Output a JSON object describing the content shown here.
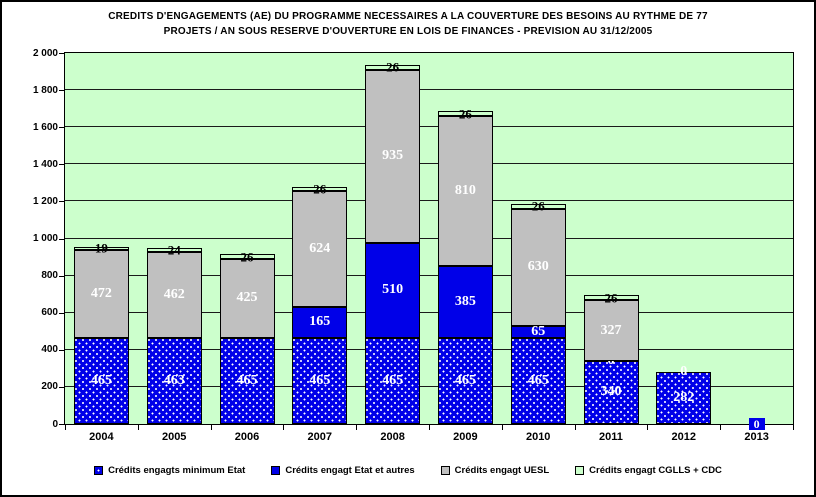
{
  "title": {
    "line1": "CREDITS D'ENGAGEMENTS (AE) DU PROGRAMME NECESSAIRES A LA COUVERTURE DES BESOINS AU RYTHME DE 77",
    "line2": "PROJETS / AN SOUS RESERVE D'OUVERTURE EN LOIS DE FINANCES - PREVISION AU 31/12/2005"
  },
  "colors": {
    "plot_background": "#CCFFCC",
    "blue": "#0000E8",
    "gray": "#C0C0C0",
    "light_green": "#CCFFCC",
    "grid": "#1a1a1a",
    "text": "#000000",
    "data_label_light": "#FFFFFF"
  },
  "chart_data": {
    "type": "bar",
    "stacked": true,
    "title": "CREDITS D'ENGAGEMENTS (AE) DU PROGRAMME NECESSAIRES A LA COUVERTURE DES BESOINS AU RYTHME DE 77 PROJETS / AN SOUS RESERVE D'OUVERTURE EN LOIS DE FINANCES - PREVISION AU 31/12/2005",
    "categories": [
      "2004",
      "2005",
      "2006",
      "2007",
      "2008",
      "2009",
      "2010",
      "2011",
      "2012",
      "2013"
    ],
    "y_axis": {
      "min": 0,
      "max": 2000,
      "step": 200,
      "tick_labels": [
        "0",
        "200",
        "400",
        "600",
        "800",
        "1 000",
        "1 200",
        "1 400",
        "1 600",
        "1 800",
        "2 000"
      ]
    },
    "grid": true,
    "legend_position": "bottom",
    "series": [
      {
        "name": "Crédits engagts minimum Etat",
        "style": "blue-dotted",
        "values": [
          465,
          463,
          465,
          465,
          465,
          465,
          465,
          340,
          282,
          0
        ],
        "labels": [
          "465",
          "463",
          "465",
          "465",
          "465",
          "465",
          "465",
          "340",
          "282",
          "0"
        ]
      },
      {
        "name": "Crédits engagt Etat et autres",
        "style": "blue-solid",
        "values": [
          0,
          0,
          0,
          165,
          510,
          385,
          65,
          0,
          0,
          0
        ],
        "labels": [
          null,
          null,
          null,
          "165",
          "510",
          "385",
          "65",
          "0",
          "0",
          null
        ]
      },
      {
        "name": "Crédits engagt UESL",
        "style": "gray",
        "values": [
          472,
          462,
          425,
          624,
          935,
          810,
          630,
          327,
          0,
          0
        ],
        "labels": [
          "472",
          "462",
          "425",
          "624",
          "935",
          "810",
          "630",
          "327",
          null,
          null
        ]
      },
      {
        "name": "Crédits engagt CGLLS + CDC",
        "style": "green",
        "values": [
          19,
          24,
          26,
          26,
          26,
          26,
          26,
          26,
          0,
          0
        ],
        "labels": [
          "19",
          "24",
          "26",
          "26",
          "26",
          "26",
          "26",
          "26",
          null,
          null
        ]
      }
    ]
  }
}
